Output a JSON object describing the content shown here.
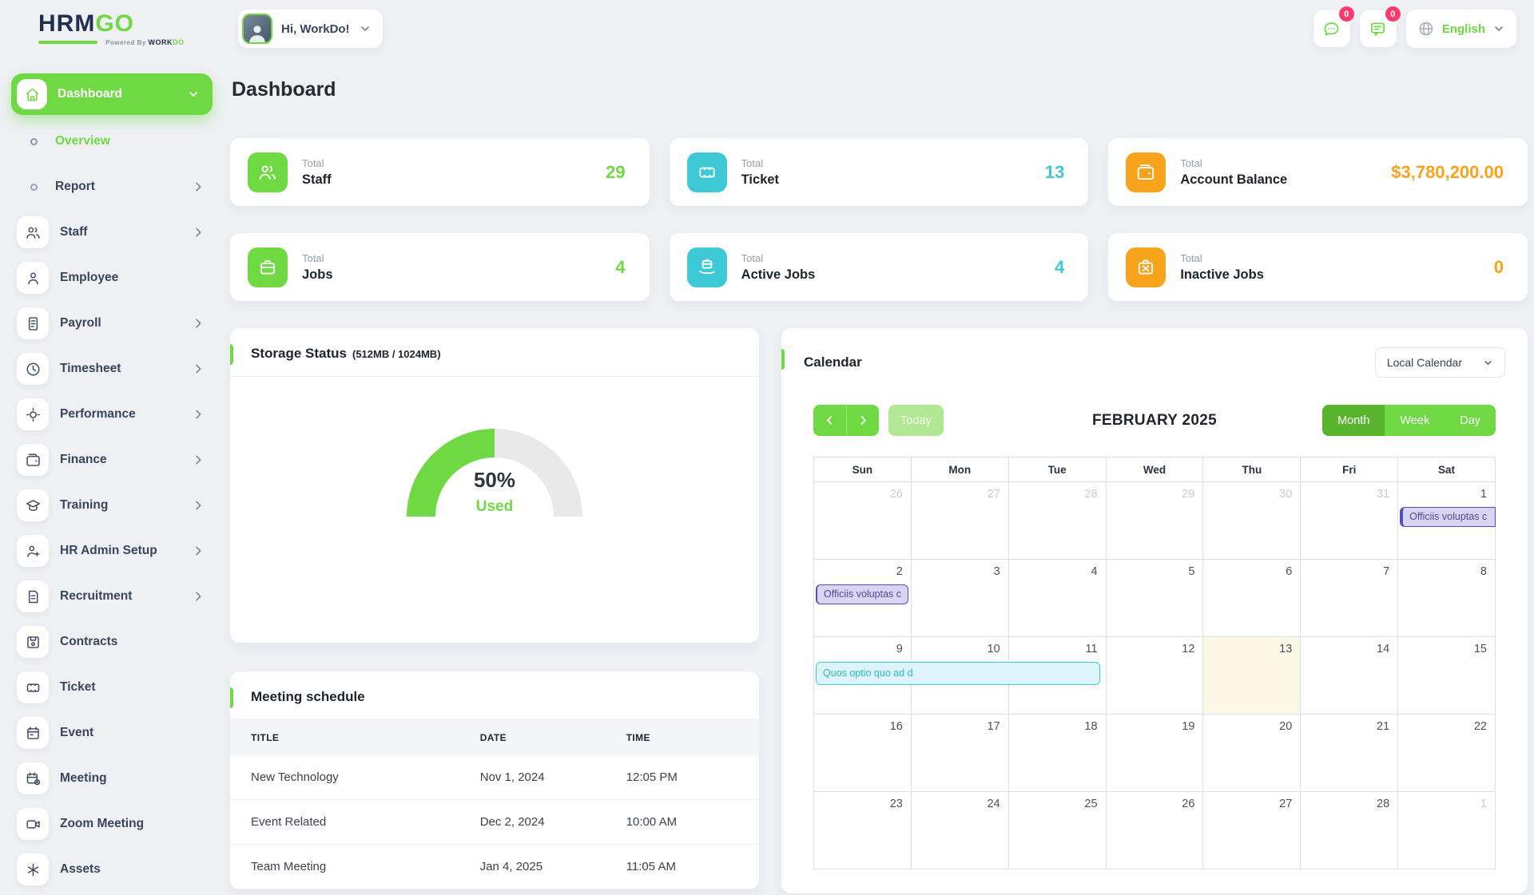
{
  "brand": {
    "logo_part1": "HRM",
    "logo_part2": "GO",
    "powered_by": "Powered By",
    "brand_word1": "WORK",
    "brand_word2": "DO"
  },
  "topbar": {
    "greeting": "Hi, WorkDo!",
    "chat_badge": "0",
    "mail_badge": "0",
    "language": "English"
  },
  "page": {
    "title": "Dashboard"
  },
  "sidebar": {
    "items": [
      {
        "label": "Dashboard",
        "icon": "home",
        "state": "active-parent",
        "chevron": "down"
      },
      {
        "label": "Overview",
        "sub": true,
        "active": true
      },
      {
        "label": "Report",
        "sub": true,
        "chevron": "right"
      },
      {
        "label": "Staff",
        "icon": "staff",
        "chevron": "right"
      },
      {
        "label": "Employee",
        "icon": "employee"
      },
      {
        "label": "Payroll",
        "icon": "payroll",
        "chevron": "right"
      },
      {
        "label": "Timesheet",
        "icon": "timesheet",
        "chevron": "right"
      },
      {
        "label": "Performance",
        "icon": "performance",
        "chevron": "right"
      },
      {
        "label": "Finance",
        "icon": "finance",
        "chevron": "right"
      },
      {
        "label": "Training",
        "icon": "training",
        "chevron": "right"
      },
      {
        "label": "HR Admin Setup",
        "icon": "hradmin",
        "chevron": "right"
      },
      {
        "label": "Recruitment",
        "icon": "recruitment",
        "chevron": "right"
      },
      {
        "label": "Contracts",
        "icon": "contracts"
      },
      {
        "label": "Ticket",
        "icon": "ticket"
      },
      {
        "label": "Event",
        "icon": "event"
      },
      {
        "label": "Meeting",
        "icon": "meeting"
      },
      {
        "label": "Zoom Meeting",
        "icon": "zoom"
      },
      {
        "label": "Assets",
        "icon": "assets"
      }
    ]
  },
  "stats": [
    {
      "prefix": "Total",
      "name": "Staff",
      "value": "29",
      "accent": "#6fd943",
      "icon": "staff"
    },
    {
      "prefix": "Total",
      "name": "Ticket",
      "value": "13",
      "accent": "#3ec9d6",
      "icon": "ticket"
    },
    {
      "prefix": "Total",
      "name": "Account Balance",
      "value": "$3,780,200.00",
      "accent": "#f8a31c",
      "icon": "wallet"
    },
    {
      "prefix": "Total",
      "name": "Jobs",
      "value": "4",
      "accent": "#6fd943",
      "icon": "briefcase"
    },
    {
      "prefix": "Total",
      "name": "Active Jobs",
      "value": "4",
      "accent": "#3ec9d6",
      "icon": "briefcase-hand"
    },
    {
      "prefix": "Total",
      "name": "Inactive Jobs",
      "value": "0",
      "accent": "#f8a31c",
      "icon": "briefcase-x"
    }
  ],
  "storage": {
    "title": "Storage Status",
    "capacity": "(512MB / 1024MB)",
    "percent": "50%",
    "used_label": "Used"
  },
  "chart_data": {
    "type": "gauge",
    "title": "Storage Status",
    "used_mb": 512,
    "total_mb": 1024,
    "percent_used": 50,
    "color_used": "#6fd943",
    "color_free": "#e9e9e9"
  },
  "meetings": {
    "title": "Meeting schedule",
    "headers": [
      "TITLE",
      "DATE",
      "TIME"
    ],
    "rows": [
      {
        "title": "New Technology",
        "date": "Nov 1, 2024",
        "time": "12:05 PM"
      },
      {
        "title": "Event Related",
        "date": "Dec 2, 2024",
        "time": "10:00 AM"
      },
      {
        "title": "Team Meeting",
        "date": "Jan 4, 2025",
        "time": "11:05 AM"
      }
    ]
  },
  "calendar": {
    "title": "Calendar",
    "source_dropdown": "Local Calendar",
    "today_label": "Today",
    "month_title": "FEBRUARY 2025",
    "views": [
      "Month",
      "Week",
      "Day"
    ],
    "active_view": "Month",
    "weekdays": [
      "Sun",
      "Mon",
      "Tue",
      "Wed",
      "Thu",
      "Fri",
      "Sat"
    ],
    "weeks": [
      [
        {
          "d": "26",
          "muted": true
        },
        {
          "d": "27",
          "muted": true
        },
        {
          "d": "28",
          "muted": true
        },
        {
          "d": "29",
          "muted": true
        },
        {
          "d": "30",
          "muted": true
        },
        {
          "d": "31",
          "muted": true
        },
        {
          "d": "1",
          "event": {
            "text": "Officiis voluptas c",
            "color": "purple",
            "shape": "cut-right"
          }
        }
      ],
      [
        {
          "d": "2",
          "event": {
            "text": "Officiis voluptas c",
            "color": "purple",
            "shape": "pill"
          }
        },
        {
          "d": "3"
        },
        {
          "d": "4"
        },
        {
          "d": "5"
        },
        {
          "d": "6"
        },
        {
          "d": "7"
        },
        {
          "d": "8"
        }
      ],
      [
        {
          "d": "9",
          "event": {
            "text": "Quos optio quo ad d",
            "color": "cyan",
            "shape": "span3"
          }
        },
        {
          "d": "10"
        },
        {
          "d": "11"
        },
        {
          "d": "12"
        },
        {
          "d": "13",
          "today": true
        },
        {
          "d": "14"
        },
        {
          "d": "15"
        }
      ],
      [
        {
          "d": "16"
        },
        {
          "d": "17"
        },
        {
          "d": "18"
        },
        {
          "d": "19"
        },
        {
          "d": "20"
        },
        {
          "d": "21"
        },
        {
          "d": "22"
        }
      ],
      [
        {
          "d": "23"
        },
        {
          "d": "24"
        },
        {
          "d": "25"
        },
        {
          "d": "26"
        },
        {
          "d": "27"
        },
        {
          "d": "28"
        },
        {
          "d": "1",
          "muted": true
        }
      ]
    ]
  }
}
